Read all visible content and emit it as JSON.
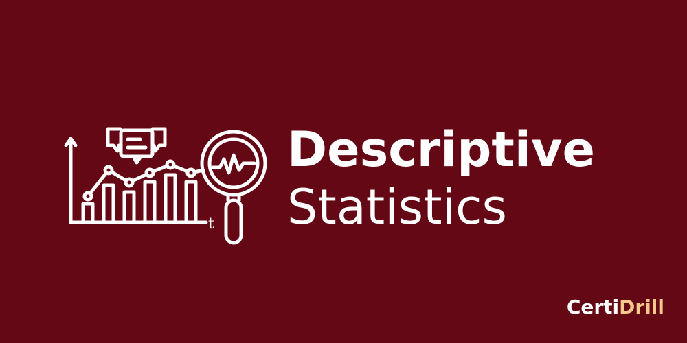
{
  "title": {
    "line1": "Descriptive",
    "line2": "Statistics"
  },
  "icon": {
    "name": "analytics-magnifier-icon",
    "axis_label": "t"
  },
  "brand": {
    "part1": "Certi",
    "part2": "Drill"
  },
  "colors": {
    "background": "#640815",
    "foreground": "#ffffff",
    "brand_accent": "#f5c78a"
  }
}
